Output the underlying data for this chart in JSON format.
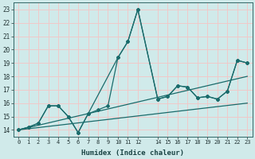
{
  "xlabel": "Humidex (Indice chaleur)",
  "bg_color": "#d0eaea",
  "grid_color": "#f0c8c8",
  "line_color": "#1a6b6b",
  "xlim": [
    -0.5,
    23.5
  ],
  "ylim": [
    13.5,
    23.5
  ],
  "yticks": [
    14,
    15,
    16,
    17,
    18,
    19,
    20,
    21,
    22,
    23
  ],
  "xtick_positions": [
    0,
    1,
    2,
    3,
    4,
    5,
    6,
    7,
    8,
    9,
    10,
    11,
    12,
    14,
    15,
    16,
    17,
    18,
    19,
    20,
    21,
    22,
    23
  ],
  "xtick_labels": [
    "0",
    "1",
    "2",
    "3",
    "4",
    "5",
    "6",
    "7",
    "8",
    "9",
    "10",
    "11",
    "12",
    "14",
    "15",
    "16",
    "17",
    "18",
    "19",
    "20",
    "21",
    "22",
    "23"
  ],
  "line1_x": [
    0,
    1,
    2,
    3,
    4,
    5,
    6,
    7,
    10,
    11,
    12,
    14,
    15,
    16,
    17,
    18,
    19,
    20,
    21,
    22,
    23
  ],
  "line1_y": [
    14,
    14.2,
    14.5,
    15.8,
    15.8,
    15.0,
    13.8,
    15.2,
    19.4,
    20.6,
    23.0,
    16.3,
    16.5,
    17.3,
    17.2,
    16.4,
    16.5,
    16.3,
    16.9,
    19.2,
    19.0
  ],
  "line2_x": [
    0,
    1,
    2,
    3,
    4,
    5,
    6,
    7,
    8,
    9,
    10,
    11,
    12,
    14,
    15,
    16,
    17,
    18,
    19,
    20,
    21,
    22,
    23
  ],
  "line2_y": [
    14,
    14.2,
    14.5,
    15.8,
    15.8,
    15.0,
    13.8,
    15.2,
    15.5,
    15.8,
    19.4,
    20.6,
    23.0,
    16.3,
    16.5,
    17.3,
    17.2,
    16.4,
    16.5,
    16.3,
    16.9,
    19.2,
    19.0
  ],
  "line3_x": [
    0,
    23
  ],
  "line3_y": [
    14.0,
    18.0
  ],
  "line4_x": [
    0,
    23
  ],
  "line4_y": [
    14.0,
    16.0
  ]
}
